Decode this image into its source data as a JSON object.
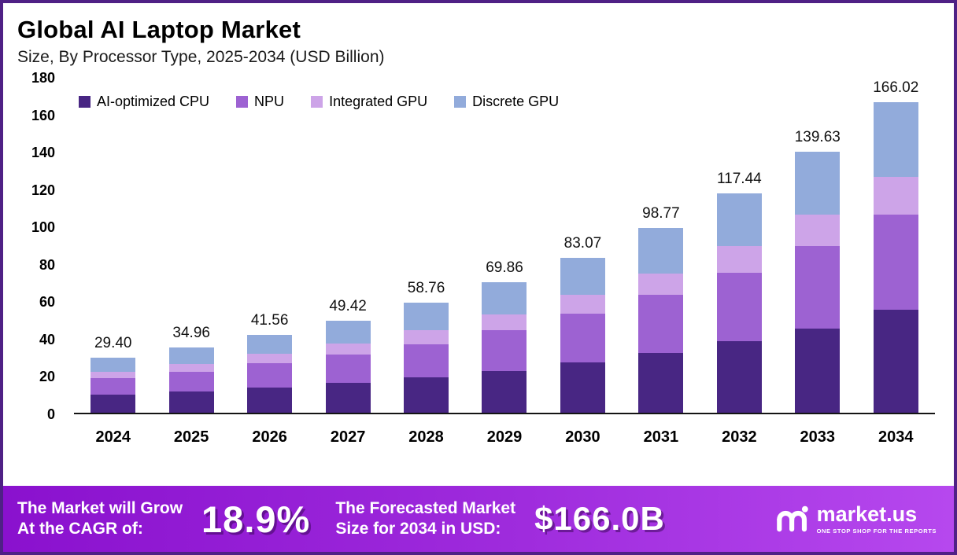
{
  "header": {
    "title": "Global AI Laptop Market",
    "subtitle": "Size, By Processor Type, 2025-2034 (USD Billion)"
  },
  "chart_data": {
    "type": "bar",
    "stacked": true,
    "title": "Global AI Laptop Market Size, By Processor Type, 2025-2034 (USD Billion)",
    "xlabel": "",
    "ylabel": "",
    "categories": [
      "2024",
      "2025",
      "2026",
      "2027",
      "2028",
      "2029",
      "2030",
      "2031",
      "2032",
      "2033",
      "2034"
    ],
    "series": [
      {
        "name": "AI-optimized CPU",
        "color": "#482683",
        "values": [
          9.7,
          11.3,
          13.5,
          16.0,
          19.0,
          22.5,
          27.0,
          32.0,
          38.5,
          45.0,
          55.0
        ]
      },
      {
        "name": "NPU",
        "color": "#9d62d2",
        "values": [
          8.9,
          10.7,
          13.0,
          15.0,
          17.5,
          21.5,
          26.0,
          31.0,
          36.5,
          44.0,
          51.0
        ]
      },
      {
        "name": "Integrated GPU",
        "color": "#cda4e8",
        "values": [
          3.4,
          4.3,
          5.0,
          6.0,
          7.5,
          8.5,
          10.0,
          11.5,
          14.0,
          17.0,
          20.0
        ]
      },
      {
        "name": "Discrete GPU",
        "color": "#92abdb",
        "values": [
          7.4,
          8.66,
          10.06,
          12.42,
          14.76,
          17.36,
          20.07,
          24.27,
          28.44,
          33.63,
          40.02
        ]
      }
    ],
    "totals": [
      29.4,
      34.96,
      41.56,
      49.42,
      58.76,
      69.86,
      83.07,
      98.77,
      117.44,
      139.63,
      166.02
    ],
    "yticks": [
      0,
      20,
      40,
      60,
      80,
      100,
      120,
      140,
      160,
      180
    ],
    "ylim": [
      0,
      180
    ],
    "grid": false,
    "legend_position": "top"
  },
  "banner": {
    "cagr_label_line1": "The Market will Grow",
    "cagr_label_line2": "At the CAGR of:",
    "cagr_value": "18.9%",
    "forecast_label_line1": "The Forecasted Market",
    "forecast_label_line2": "Size for 2034 in USD:",
    "forecast_value": "$166.0B",
    "logo_text": "market.us",
    "logo_tagline": "ONE STOP SHOP FOR THE REPORTS"
  }
}
